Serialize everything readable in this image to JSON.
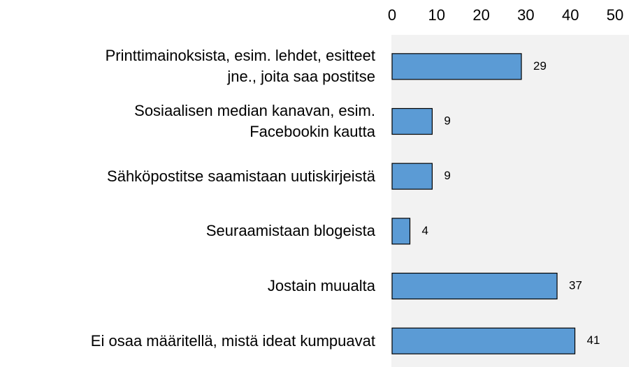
{
  "chart_data": {
    "type": "bar",
    "orientation": "horizontal",
    "categories": [
      "Printtimainoksista, esim. lehdet, esitteet\njne., joita saa postitse",
      "Sosiaalisen median kanavan, esim.\nFacebookin kautta",
      "Sähköpostitse saamistaan uutiskirjeistä",
      "Seuraamistaan blogeista",
      "Jostain muualta",
      "Ei osaa määritellä, mistä ideat kumpuavat"
    ],
    "values": [
      29,
      9,
      9,
      4,
      37,
      41
    ],
    "color": "#5b9bd5",
    "xlim": [
      0,
      50
    ],
    "xticks": [
      0,
      10,
      20,
      30,
      40,
      50
    ],
    "grid": false
  }
}
